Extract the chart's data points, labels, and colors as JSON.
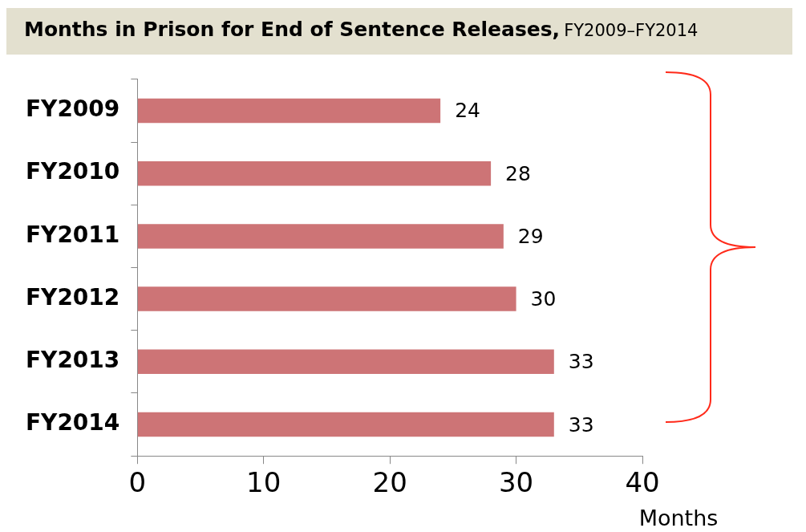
{
  "chart_data": {
    "type": "bar",
    "orientation": "horizontal",
    "title": "Months in Prison for End of Sentence Releases,",
    "subtitle": "FY2009–FY2014",
    "xlabel": "Months",
    "categories": [
      "FY2009",
      "FY2010",
      "FY2011",
      "FY2012",
      "FY2013",
      "FY2014"
    ],
    "values": [
      24,
      28,
      29,
      30,
      33,
      33
    ],
    "color": "#cd7476",
    "xlim": [
      0,
      40
    ],
    "xticks": [
      0,
      10,
      20,
      30,
      40
    ],
    "data_labels": true,
    "grid": false,
    "legend": false
  }
}
